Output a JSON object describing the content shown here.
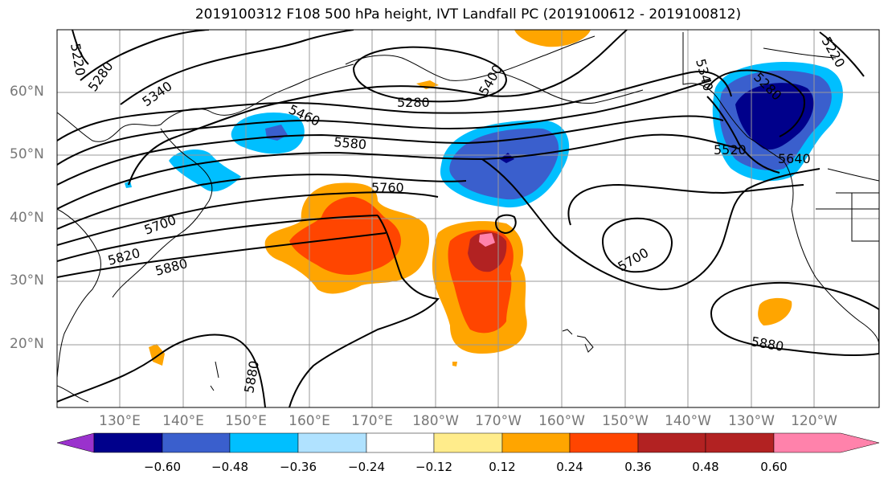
{
  "title": "2019100312 F108 500 hPa height, IVT Landfall PC (2019100612 - 2019100812)",
  "lat_labels": [
    "60°N",
    "50°N",
    "40°N",
    "30°N",
    "20°N"
  ],
  "lon_labels": [
    "130°E",
    "140°E",
    "150°E",
    "160°E",
    "170°E",
    "180°W",
    "170°W",
    "160°W",
    "150°W",
    "140°W",
    "130°W",
    "120°W"
  ],
  "contour_labels": [
    "5220",
    "5280",
    "5340",
    "5460",
    "5280",
    "5400",
    "5580",
    "5760",
    "5700",
    "5820",
    "5880",
    "5700",
    "5880",
    "5340",
    "5280",
    "5220",
    "5520",
    "5640",
    "5880"
  ],
  "colorbar": {
    "ticks": [
      "−0.60",
      "−0.48",
      "−0.36",
      "−0.24",
      "−0.12",
      "0.12",
      "0.24",
      "0.36",
      "0.48",
      "0.60"
    ],
    "colors": [
      "#9a32cd",
      "#00008b",
      "#3a5fcd",
      "#00bfff",
      "#b0e2ff",
      "#ffffff",
      "#ffec8b",
      "#ffa500",
      "#ff4500",
      "#b22222",
      "#ff82ab"
    ]
  }
}
